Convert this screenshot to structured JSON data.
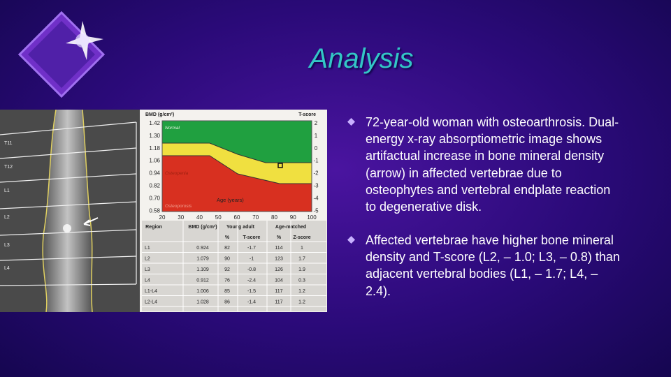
{
  "title": "Analysis",
  "bullets": [
    "72-year-old woman with osteoarthrosis. Dual-energy x-ray absorptiometric image shows artifactual increase in bone mineral density (arrow) in affected vertebrae due to osteophytes and vertebral endplate reaction to degenerative disk.",
    "Affected vertebrae have higher bone mineral density and T-score (L2, – 1.0; L3, – 0.8) than adjacent vertebral bodies (L1, – 1.7; L4, – 2.4)."
  ],
  "figure": {
    "scan_labels": [
      "T11",
      "T12",
      "L1",
      "L2",
      "L3",
      "L4"
    ],
    "chart": {
      "y_label": "BMD (g/cm²)",
      "y2_label": "T-score",
      "yticks": [
        "1.42",
        "1.30",
        "1.18",
        "1.06",
        "0.94",
        "0.82",
        "0.70",
        "0.58"
      ],
      "y2ticks": [
        "2",
        "1",
        "0",
        "-1",
        "-2",
        "-3",
        "-4",
        "-5"
      ],
      "xticks": [
        "20",
        "30",
        "40",
        "50",
        "60",
        "70",
        "80",
        "90",
        "100"
      ],
      "x_label": "Age (years)",
      "zones": [
        "Normal",
        "Osteopenia",
        "Osteoporosis"
      ]
    },
    "table": {
      "header": [
        "Region",
        "BMD (g/cm²)",
        "Young adult",
        "Age-matched"
      ],
      "subheader": [
        "%",
        "T-score",
        "%",
        "Z-score"
      ],
      "rows": [
        [
          "L1",
          "0.924",
          "82",
          "-1.7",
          "114",
          "1"
        ],
        [
          "L2",
          "1.079",
          "90",
          "-1",
          "123",
          "1.7"
        ],
        [
          "L3",
          "1.109",
          "92",
          "-0.8",
          "126",
          "1.9"
        ],
        [
          "L4",
          "0.912",
          "76",
          "-2.4",
          "104",
          "0.3"
        ],
        [
          "L1-L4",
          "1.006",
          "85",
          "-1.5",
          "117",
          "1.2"
        ],
        [
          "L2-L4",
          "1.028",
          "86",
          "-1.4",
          "117",
          "1.2"
        ]
      ]
    }
  }
}
